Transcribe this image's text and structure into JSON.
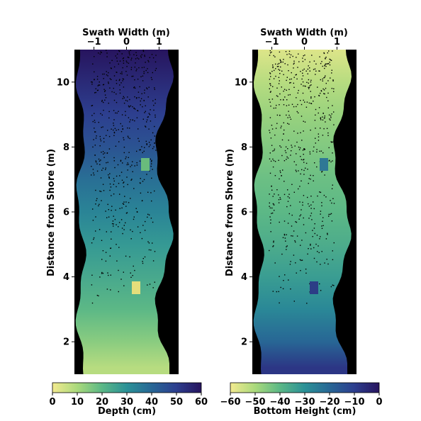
{
  "chart_data": [
    {
      "type": "heatmap",
      "title": "",
      "top_xlabel": "Swath Width (m)",
      "top_xticks": [
        "−1",
        "0",
        "1"
      ],
      "top_xtick_values": [
        -1,
        0,
        1
      ],
      "xlim": [
        -1.6,
        1.6
      ],
      "ylabel": "Distance from Shore (m)",
      "yticks": [
        "2",
        "4",
        "6",
        "8",
        "10"
      ],
      "ytick_values": [
        2,
        4,
        6,
        8,
        10
      ],
      "ylim": [
        1.0,
        11.0
      ],
      "background": "#000000",
      "colorbar": {
        "label": "Depth (cm)",
        "ticks": [
          "0",
          "10",
          "20",
          "30",
          "40",
          "50",
          "60"
        ],
        "tick_values": [
          0,
          10,
          20,
          30,
          40,
          50,
          60
        ],
        "range": [
          0,
          60
        ],
        "colormap": [
          "#f3ea8f",
          "#a8d97c",
          "#5cb886",
          "#2b9197",
          "#286695",
          "#2d3f8f",
          "#27145e"
        ]
      },
      "series": [
        {
          "name": "",
          "values": [
            {
              "y": 1.2,
              "value": 8
            },
            {
              "y": 2.0,
              "value": 14
            },
            {
              "y": 3.0,
              "value": 20
            },
            {
              "y": 4.0,
              "value": 24
            },
            {
              "y": 5.0,
              "value": 28
            },
            {
              "y": 6.0,
              "value": 33
            },
            {
              "y": 7.0,
              "value": 38
            },
            {
              "y": 8.0,
              "value": 45
            },
            {
              "y": 9.0,
              "value": 50
            },
            {
              "y": 10.0,
              "value": 55
            },
            {
              "y": 11.0,
              "value": 60
            }
          ]
        }
      ]
    },
    {
      "type": "heatmap",
      "title": "",
      "top_xlabel": "Swath Width (m)",
      "top_xticks": [
        "−1",
        "0",
        "1"
      ],
      "top_xtick_values": [
        -1,
        0,
        1
      ],
      "xlim": [
        -1.6,
        1.6
      ],
      "ylabel": "Distance from Shore (m)",
      "yticks": [
        "2",
        "4",
        "6",
        "8",
        "10"
      ],
      "ytick_values": [
        2,
        4,
        6,
        8,
        10
      ],
      "ylim": [
        1.0,
        11.0
      ],
      "background": "#000000",
      "colorbar": {
        "label": "Bottom Height (cm)",
        "ticks": [
          "−60",
          "−50",
          "−40",
          "−30",
          "−20",
          "−10",
          "0"
        ],
        "tick_values": [
          -60,
          -50,
          -40,
          -30,
          -20,
          -10,
          0
        ],
        "range": [
          -60,
          0
        ],
        "colormap": [
          "#f3ea8f",
          "#a8d97c",
          "#5cb886",
          "#2b9197",
          "#286695",
          "#2d3f8f",
          "#27145e"
        ]
      },
      "series": [
        {
          "name": "",
          "values": [
            {
              "y": 1.2,
              "value": -8
            },
            {
              "y": 2.0,
              "value": -20
            },
            {
              "y": 3.0,
              "value": -28
            },
            {
              "y": 4.0,
              "value": -33
            },
            {
              "y": 5.0,
              "value": -37
            },
            {
              "y": 6.0,
              "value": -40
            },
            {
              "y": 7.0,
              "value": -42
            },
            {
              "y": 8.0,
              "value": -45
            },
            {
              "y": 9.0,
              "value": -48
            },
            {
              "y": 10.0,
              "value": -52
            },
            {
              "y": 11.0,
              "value": -57
            }
          ]
        }
      ]
    }
  ]
}
